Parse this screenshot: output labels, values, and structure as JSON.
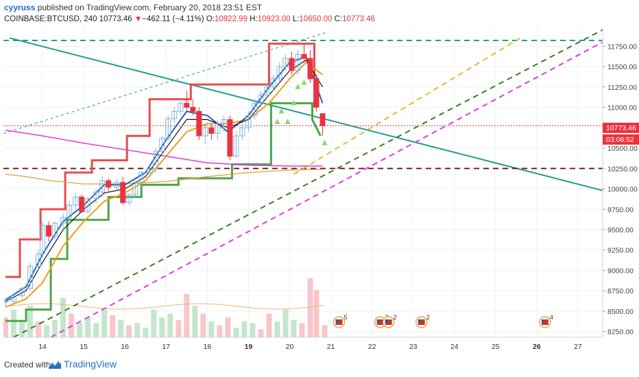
{
  "header": {
    "user": "cyyruss",
    "published_text": " published on TradingView.com, February 20, 2018 23:51 EST",
    "symbol": "COINBASE:BTCUSD, 240",
    "last": "10773.46",
    "change": "−462.11 (−4.11%)",
    "open_label": "O:",
    "open": "10922.99",
    "high_label": "H:",
    "high": "10923.00",
    "low_label": "L:",
    "low": "10650.00",
    "close_label": "C:",
    "close": "10773.46"
  },
  "price_tag": {
    "price": "10773.46",
    "countdown": "03:08:52"
  },
  "footer": {
    "created": "Created with",
    "brand": "TradingView"
  },
  "colors": {
    "up": "#6aa84f",
    "down": "#e8343f",
    "ema_black": "#111111",
    "ema_blue": "#1f5fc4",
    "ema_orange": "#f39c1a",
    "magenta": "#e03adf",
    "teal": "#1f9d88",
    "darkred": "#7b1e1e",
    "yellow_dash": "#e8b830",
    "darkgreen_dash": "#3a7a1f",
    "env_red": "#e74c4c",
    "env_green": "#4aa54a"
  },
  "chart_data": {
    "type": "candlestick",
    "symbol": "COINBASE:BTCUSD",
    "interval": "240",
    "y_ticks": [
      11750,
      11500,
      11250,
      11000,
      10750,
      10500,
      10250,
      10000,
      9750,
      9500,
      9250,
      9000,
      8750,
      8500,
      8250
    ],
    "y_tick_labels": [
      "11750.00",
      "11500.00",
      "11250.00",
      "11000.00",
      "10750.00",
      "10500.00",
      "10250.00",
      "10000.00",
      "9750.00",
      "9500.00",
      "9250.00",
      "9000.00",
      "8750.00",
      "8500.00",
      "8250.00"
    ],
    "x_tick_labels": [
      "14",
      "15",
      "16",
      "17",
      "18",
      "19",
      "20",
      "21",
      "22",
      "23",
      "24",
      "25",
      "26",
      "27"
    ],
    "x_bold_labels": [
      "19",
      "26"
    ],
    "ylim": [
      8180,
      11980
    ],
    "xlim_days": [
      13.05,
      27.6
    ],
    "current_price": 10773.46,
    "candles": [
      {
        "t": 13.1,
        "o": 8610,
        "h": 8660,
        "l": 8560,
        "c": 8640
      },
      {
        "t": 13.3,
        "o": 8620,
        "h": 8700,
        "l": 8580,
        "c": 8690
      },
      {
        "t": 13.5,
        "o": 8690,
        "h": 8800,
        "l": 8660,
        "c": 8780
      },
      {
        "t": 13.7,
        "o": 8780,
        "h": 9100,
        "l": 8750,
        "c": 9050
      },
      {
        "t": 13.9,
        "o": 9050,
        "h": 9250,
        "l": 9000,
        "c": 9200
      },
      {
        "t": 14.0,
        "o": 9200,
        "h": 9600,
        "l": 9150,
        "c": 9550
      },
      {
        "t": 14.15,
        "o": 9550,
        "h": 9600,
        "l": 9350,
        "c": 9420
      },
      {
        "t": 14.3,
        "o": 9420,
        "h": 9600,
        "l": 9380,
        "c": 9580
      },
      {
        "t": 14.5,
        "o": 9580,
        "h": 9700,
        "l": 9500,
        "c": 9650
      },
      {
        "t": 14.65,
        "o": 9650,
        "h": 9850,
        "l": 9600,
        "c": 9800
      },
      {
        "t": 14.8,
        "o": 9800,
        "h": 9950,
        "l": 9750,
        "c": 9900
      },
      {
        "t": 14.95,
        "o": 9900,
        "h": 9930,
        "l": 9700,
        "c": 9720
      },
      {
        "t": 15.1,
        "o": 9720,
        "h": 9900,
        "l": 9700,
        "c": 9880
      },
      {
        "t": 15.3,
        "o": 9880,
        "h": 10000,
        "l": 9820,
        "c": 9960
      },
      {
        "t": 15.45,
        "o": 9960,
        "h": 10150,
        "l": 9900,
        "c": 10100
      },
      {
        "t": 15.6,
        "o": 10100,
        "h": 10130,
        "l": 9950,
        "c": 10020
      },
      {
        "t": 15.8,
        "o": 10020,
        "h": 10120,
        "l": 9980,
        "c": 10080
      },
      {
        "t": 15.95,
        "o": 10080,
        "h": 10150,
        "l": 9800,
        "c": 9830
      },
      {
        "t": 16.1,
        "o": 9830,
        "h": 9950,
        "l": 9800,
        "c": 9930
      },
      {
        "t": 16.25,
        "o": 9930,
        "h": 10100,
        "l": 9900,
        "c": 10080
      },
      {
        "t": 16.4,
        "o": 10080,
        "h": 10220,
        "l": 10050,
        "c": 10200
      },
      {
        "t": 16.6,
        "o": 10200,
        "h": 10280,
        "l": 10150,
        "c": 10250
      },
      {
        "t": 16.75,
        "o": 10250,
        "h": 10500,
        "l": 10200,
        "c": 10460
      },
      {
        "t": 16.9,
        "o": 10460,
        "h": 10650,
        "l": 10420,
        "c": 10620
      },
      {
        "t": 17.05,
        "o": 10620,
        "h": 10900,
        "l": 10580,
        "c": 10860
      },
      {
        "t": 17.2,
        "o": 10860,
        "h": 11000,
        "l": 10800,
        "c": 10950
      },
      {
        "t": 17.35,
        "o": 10950,
        "h": 11100,
        "l": 10900,
        "c": 11050
      },
      {
        "t": 17.5,
        "o": 11050,
        "h": 11200,
        "l": 10950,
        "c": 11000
      },
      {
        "t": 17.65,
        "o": 11000,
        "h": 11100,
        "l": 10900,
        "c": 10950
      },
      {
        "t": 17.8,
        "o": 10950,
        "h": 11000,
        "l": 10600,
        "c": 10650
      },
      {
        "t": 17.95,
        "o": 10650,
        "h": 10800,
        "l": 10550,
        "c": 10750
      },
      {
        "t": 18.1,
        "o": 10750,
        "h": 10800,
        "l": 10600,
        "c": 10680
      },
      {
        "t": 18.25,
        "o": 10680,
        "h": 10850,
        "l": 10600,
        "c": 10800
      },
      {
        "t": 18.4,
        "o": 10800,
        "h": 10900,
        "l": 10700,
        "c": 10850
      },
      {
        "t": 18.55,
        "o": 10850,
        "h": 10900,
        "l": 10350,
        "c": 10400
      },
      {
        "t": 18.7,
        "o": 10400,
        "h": 10700,
        "l": 10380,
        "c": 10650
      },
      {
        "t": 18.85,
        "o": 10650,
        "h": 10800,
        "l": 10600,
        "c": 10750
      },
      {
        "t": 19.0,
        "o": 10750,
        "h": 10950,
        "l": 10700,
        "c": 10900
      },
      {
        "t": 19.15,
        "o": 10900,
        "h": 11100,
        "l": 10850,
        "c": 11050
      },
      {
        "t": 19.3,
        "o": 11050,
        "h": 11200,
        "l": 11000,
        "c": 11150
      },
      {
        "t": 19.45,
        "o": 11150,
        "h": 11300,
        "l": 11100,
        "c": 11250
      },
      {
        "t": 19.6,
        "o": 11250,
        "h": 11400,
        "l": 11200,
        "c": 11350
      },
      {
        "t": 19.75,
        "o": 11350,
        "h": 11550,
        "l": 11300,
        "c": 11500
      },
      {
        "t": 19.9,
        "o": 11500,
        "h": 11650,
        "l": 11450,
        "c": 11600
      },
      {
        "t": 20.05,
        "o": 11600,
        "h": 11680,
        "l": 11400,
        "c": 11450
      },
      {
        "t": 20.2,
        "o": 11450,
        "h": 11700,
        "l": 11400,
        "c": 11650
      },
      {
        "t": 20.35,
        "o": 11650,
        "h": 11780,
        "l": 11550,
        "c": 11600
      },
      {
        "t": 20.5,
        "o": 11600,
        "h": 11700,
        "l": 11300,
        "c": 11350
      },
      {
        "t": 20.65,
        "o": 11350,
        "h": 11400,
        "l": 10950,
        "c": 11000
      },
      {
        "t": 20.8,
        "o": 10922.99,
        "h": 10923,
        "l": 10650,
        "c": 10773.46
      }
    ],
    "volume": [
      {
        "t": 13.1,
        "v": 0.25,
        "up": false
      },
      {
        "t": 13.3,
        "v": 0.35,
        "up": true
      },
      {
        "t": 13.5,
        "v": 0.2,
        "up": true
      },
      {
        "t": 13.7,
        "v": 0.4,
        "up": true
      },
      {
        "t": 13.9,
        "v": 0.2,
        "up": false
      },
      {
        "t": 14.1,
        "v": 0.15,
        "up": true
      },
      {
        "t": 14.3,
        "v": 0.22,
        "up": true
      },
      {
        "t": 14.5,
        "v": 0.5,
        "up": true
      },
      {
        "t": 14.7,
        "v": 0.3,
        "up": false
      },
      {
        "t": 14.9,
        "v": 0.18,
        "up": true
      },
      {
        "t": 15.1,
        "v": 0.25,
        "up": true
      },
      {
        "t": 15.3,
        "v": 0.18,
        "up": true
      },
      {
        "t": 15.5,
        "v": 0.35,
        "up": true
      },
      {
        "t": 15.7,
        "v": 0.28,
        "up": false
      },
      {
        "t": 15.9,
        "v": 0.22,
        "up": true
      },
      {
        "t": 16.1,
        "v": 0.15,
        "up": false
      },
      {
        "t": 16.3,
        "v": 0.18,
        "up": true
      },
      {
        "t": 16.5,
        "v": 0.12,
        "up": true
      },
      {
        "t": 16.7,
        "v": 0.35,
        "up": true
      },
      {
        "t": 16.9,
        "v": 0.25,
        "up": true
      },
      {
        "t": 17.1,
        "v": 0.3,
        "up": true
      },
      {
        "t": 17.3,
        "v": 0.22,
        "up": false
      },
      {
        "t": 17.5,
        "v": 0.55,
        "up": false
      },
      {
        "t": 17.7,
        "v": 0.4,
        "up": true
      },
      {
        "t": 17.9,
        "v": 0.3,
        "up": false
      },
      {
        "t": 18.1,
        "v": 0.2,
        "up": true
      },
      {
        "t": 18.3,
        "v": 0.15,
        "up": false
      },
      {
        "t": 18.5,
        "v": 0.25,
        "up": false
      },
      {
        "t": 18.7,
        "v": 0.12,
        "up": true
      },
      {
        "t": 18.9,
        "v": 0.2,
        "up": true
      },
      {
        "t": 19.1,
        "v": 0.18,
        "up": true
      },
      {
        "t": 19.3,
        "v": 0.1,
        "up": false
      },
      {
        "t": 19.5,
        "v": 0.3,
        "up": false
      },
      {
        "t": 19.7,
        "v": 0.2,
        "up": true
      },
      {
        "t": 19.9,
        "v": 0.35,
        "up": true
      },
      {
        "t": 20.1,
        "v": 0.22,
        "up": true
      },
      {
        "t": 20.3,
        "v": 0.18,
        "up": false
      },
      {
        "t": 20.5,
        "v": 0.75,
        "up": false
      },
      {
        "t": 20.65,
        "v": 0.6,
        "up": false
      },
      {
        "t": 20.85,
        "v": 0.15,
        "up": false
      }
    ],
    "lines": {
      "ema_black": [
        [
          13.1,
          8620
        ],
        [
          13.6,
          8750
        ],
        [
          14.0,
          9100
        ],
        [
          14.5,
          9500
        ],
        [
          15.0,
          9750
        ],
        [
          15.5,
          9950
        ],
        [
          16.0,
          10000
        ],
        [
          16.5,
          10150
        ],
        [
          17.0,
          10500
        ],
        [
          17.5,
          10850
        ],
        [
          18.0,
          10850
        ],
        [
          18.5,
          10750
        ],
        [
          19.0,
          10850
        ],
        [
          19.5,
          11150
        ],
        [
          20.0,
          11450
        ],
        [
          20.4,
          11580
        ],
        [
          20.8,
          11250
        ]
      ],
      "ema_blue": [
        [
          13.1,
          8640
        ],
        [
          13.6,
          8800
        ],
        [
          14.0,
          9200
        ],
        [
          14.5,
          9600
        ],
        [
          15.0,
          9800
        ],
        [
          15.5,
          10050
        ],
        [
          16.0,
          10050
        ],
        [
          16.5,
          10200
        ],
        [
          17.0,
          10600
        ],
        [
          17.5,
          10950
        ],
        [
          18.0,
          10900
        ],
        [
          18.5,
          10700
        ],
        [
          19.0,
          10900
        ],
        [
          19.5,
          11250
        ],
        [
          20.0,
          11550
        ],
        [
          20.4,
          11620
        ],
        [
          20.8,
          11050
        ]
      ],
      "ema_orange": [
        [
          13.1,
          8550
        ],
        [
          13.6,
          8650
        ],
        [
          14.0,
          8850
        ],
        [
          14.5,
          9300
        ],
        [
          15.0,
          9600
        ],
        [
          15.5,
          9850
        ],
        [
          16.0,
          9950
        ],
        [
          16.5,
          10100
        ],
        [
          17.0,
          10400
        ],
        [
          17.5,
          10700
        ],
        [
          18.0,
          10800
        ],
        [
          18.5,
          10800
        ],
        [
          19.0,
          10850
        ],
        [
          19.5,
          11050
        ],
        [
          20.0,
          11350
        ],
        [
          20.4,
          11550
        ],
        [
          20.8,
          11400
        ]
      ],
      "sma_yellow_slow": [
        [
          13.1,
          10180
        ],
        [
          13.6,
          10150
        ],
        [
          14.2,
          10100
        ],
        [
          15.0,
          10060
        ],
        [
          16.0,
          10060
        ],
        [
          17.0,
          10090
        ],
        [
          18.0,
          10150
        ],
        [
          19.0,
          10200
        ],
        [
          20.0,
          10230
        ],
        [
          20.8,
          10240
        ]
      ],
      "magenta_ma": [
        [
          13.1,
          10720
        ],
        [
          14.0,
          10650
        ],
        [
          15.0,
          10560
        ],
        [
          16.0,
          10480
        ],
        [
          17.0,
          10400
        ],
        [
          18.0,
          10320
        ],
        [
          19.0,
          10290
        ],
        [
          20.0,
          10280
        ],
        [
          20.8,
          10280
        ]
      ],
      "upper_channel": [
        [
          13.1,
          8920
        ],
        [
          13.45,
          8920
        ],
        [
          13.45,
          9380
        ],
        [
          13.95,
          9380
        ],
        [
          13.95,
          9750
        ],
        [
          14.55,
          9750
        ],
        [
          14.55,
          10200
        ],
        [
          15.2,
          10200
        ],
        [
          15.2,
          10350
        ],
        [
          16.05,
          10350
        ],
        [
          16.05,
          10650
        ],
        [
          16.6,
          10650
        ],
        [
          16.6,
          11100
        ],
        [
          17.6,
          11100
        ],
        [
          17.6,
          11280
        ],
        [
          19.5,
          11280
        ],
        [
          19.5,
          11780
        ],
        [
          20.6,
          11780
        ],
        [
          20.6,
          11000
        ]
      ],
      "lower_channel": [
        [
          13.1,
          8380
        ],
        [
          13.6,
          8380
        ],
        [
          13.6,
          8520
        ],
        [
          14.2,
          8520
        ],
        [
          14.2,
          9140
        ],
        [
          14.6,
          9140
        ],
        [
          14.6,
          9620
        ],
        [
          15.6,
          9620
        ],
        [
          15.6,
          9900
        ],
        [
          16.4,
          9900
        ],
        [
          16.4,
          10050
        ],
        [
          17.3,
          10050
        ],
        [
          17.3,
          10130
        ],
        [
          18.6,
          10130
        ],
        [
          18.6,
          10300
        ],
        [
          19.55,
          10300
        ],
        [
          19.55,
          11050
        ],
        [
          20.55,
          11050
        ],
        [
          20.55,
          10850
        ],
        [
          20.75,
          10650
        ]
      ]
    },
    "trendlines": {
      "teal_solid": [
        [
          13.2,
          11850
        ],
        [
          27.6,
          9980
        ]
      ],
      "teal_dashed_horizontal": 11820,
      "teal_dashed_diagonal": [
        [
          13.05,
          10680
        ],
        [
          20.9,
          11920
        ]
      ],
      "darkred_dashed_horizontal": 10250,
      "yellow_dashed": [
        [
          20.1,
          10180
        ],
        [
          25.6,
          11850
        ]
      ],
      "darkgreen_dashed": [
        [
          13.3,
          8180
        ],
        [
          27.6,
          11950
        ]
      ],
      "magenta_dashed": [
        [
          14.2,
          8180
        ],
        [
          27.6,
          11800
        ]
      ]
    },
    "markers_up": [
      [
        19.7,
        10820
      ],
      [
        19.8,
        10950
      ],
      [
        19.95,
        10820
      ],
      [
        20.1,
        11050
      ],
      [
        20.2,
        11250
      ],
      [
        20.35,
        11300
      ],
      [
        20.85,
        10560
      ]
    ],
    "event_flags": [
      {
        "t": 21.2,
        "count": "5"
      },
      {
        "t": 22.2,
        "count": "2"
      },
      {
        "t": 22.4,
        "count": "2"
      },
      {
        "t": 23.2,
        "count": "2"
      },
      {
        "t": 26.2,
        "count": "4"
      }
    ]
  }
}
